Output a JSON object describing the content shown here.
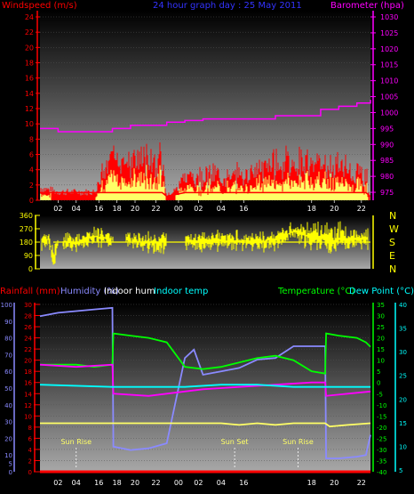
{
  "colors": {
    "windspeed": "#ff0000",
    "wind_gust_bars": "#ff0000",
    "wind_avg_bars": "#ffff66",
    "barometer": "#ff00ff",
    "direction": "#ffff00",
    "rainfall": "#ff0000",
    "humidity": "#8a8aff",
    "indoor_hum": "#ffff66",
    "indoor_temp": "#00ffff",
    "temperature": "#00ff00",
    "dew_point": "#ff00ff",
    "title": "#3333ff"
  },
  "top": {
    "title": "24 hour graph day : 25 May 2011",
    "left_label": "Windspeed (m/s)",
    "right_label": "Barometer (hpa)",
    "left_ticks": [
      "24",
      "22",
      "20",
      "18",
      "16",
      "14",
      "12",
      "10",
      "8",
      "6",
      "4",
      "2",
      "0"
    ],
    "right_ticks": [
      "1030",
      "1025",
      "1020",
      "1015",
      "1010",
      "1005",
      "1000",
      "995",
      "990",
      "985",
      "980",
      "975"
    ]
  },
  "middle": {
    "left_ticks": [
      "360",
      "270",
      "180",
      "90",
      "0"
    ],
    "right_ticks": [
      "N",
      "W",
      "S",
      "E",
      "N"
    ]
  },
  "bottom": {
    "rain_label": "Rainfall (mm)",
    "humidity_label": "Humidity (%)",
    "indoor_hum_label": "Indoor hum",
    "indoor_temp_label": "Indoor temp",
    "temperature_label": "Temperature (°C)",
    "dew_label": "Dew Point (°C)",
    "humidity_ticks": [
      "100",
      "90",
      "80",
      "70",
      "60",
      "50",
      "40",
      "30",
      "20",
      "10",
      "5",
      "0"
    ],
    "rain_ticks": [
      "30",
      "28",
      "26",
      "24",
      "22",
      "20",
      "18",
      "16",
      "14",
      "12",
      "10",
      "8",
      "6",
      "4",
      "2",
      "0"
    ],
    "temp_ticks": [
      "35",
      "30",
      "25",
      "20",
      "15",
      "10",
      "5",
      "0",
      "-5",
      "-10",
      "-15",
      "-20",
      "-25",
      "-30",
      "-35",
      "-40"
    ],
    "temp_right_ticks": [
      "40",
      "35",
      "30",
      "25",
      "20",
      "15",
      "10",
      "5"
    ],
    "events": [
      {
        "label": "Sun Rise",
        "hour": 4
      },
      {
        "label": "Sun Set",
        "hour": 21.5
      },
      {
        "label": "Sun Rise",
        "hour": 28.5
      }
    ]
  },
  "x_ticks": [
    "02",
    "04",
    "16",
    "18",
    "20",
    "22",
    "00",
    "02",
    "04",
    "16",
    "18",
    "20",
    "22"
  ],
  "chart_data": [
    {
      "type": "line",
      "title": "24 hour graph day : 25 May 2011",
      "series": [
        {
          "name": "Barometer (hpa)",
          "axis": "right",
          "ylim": [
            972.5,
            1030
          ],
          "x": [
            0,
            2,
            4,
            6,
            8,
            10,
            14,
            16,
            18,
            20,
            22,
            24,
            26,
            28,
            30,
            31,
            33,
            35,
            36.5
          ],
          "values": [
            995,
            994,
            994,
            994,
            995,
            996,
            997,
            997.5,
            998,
            998,
            998,
            998,
            999,
            999,
            999,
            1001,
            1002,
            1003,
            1004
          ]
        },
        {
          "name": "Windspeed (m/s)",
          "axis": "left",
          "ylim": [
            0,
            24
          ],
          "x": [
            0,
            2,
            3.5,
            6,
            8,
            10,
            13.5,
            14,
            16,
            18,
            20,
            22,
            24,
            26,
            28,
            30,
            32,
            34,
            36,
            36.5
          ],
          "values": [
            1.5,
            1,
            1,
            1,
            4,
            4,
            4,
            0.5,
            2,
            2,
            2,
            2,
            2.5,
            3.5,
            3.5,
            3.5,
            3,
            3,
            2,
            0.5
          ]
        }
      ],
      "xlim": [
        0,
        36.5
      ]
    },
    {
      "type": "scatter",
      "ylabel": "Wind direction",
      "ylim": [
        0,
        360
      ],
      "x": [
        0,
        1,
        1.5,
        2,
        4,
        6,
        8,
        10,
        12,
        14,
        16,
        18,
        20,
        22,
        24,
        26,
        28,
        30,
        32,
        34,
        36
      ],
      "values": [
        180,
        200,
        60,
        180,
        180,
        220,
        200,
        190,
        180,
        180,
        180,
        180,
        190,
        190,
        180,
        200,
        250,
        220,
        190,
        200,
        200
      ]
    },
    {
      "type": "line",
      "xlim": [
        0,
        36.5
      ],
      "series": [
        {
          "name": "Humidity (%)",
          "axis": "humidity",
          "ylim": [
            0,
            100
          ],
          "x": [
            0,
            2,
            4,
            6,
            8,
            8.1,
            10,
            12,
            14,
            16,
            17,
            18,
            20,
            22,
            24,
            26,
            28,
            30,
            31.5,
            31.6,
            33,
            35,
            36,
            36.5
          ],
          "values": [
            93,
            95,
            96,
            97,
            98,
            15,
            13,
            14,
            17,
            68,
            73,
            58,
            60,
            62,
            67,
            68,
            75,
            75,
            75,
            8,
            8,
            9,
            10,
            22
          ]
        },
        {
          "name": "Temperature (°C)",
          "axis": "temp",
          "ylim": [
            -40,
            35
          ],
          "x": [
            0,
            2,
            4,
            6,
            8,
            8.1,
            10,
            12,
            14,
            16,
            18,
            20,
            22,
            24,
            26,
            28,
            30,
            31.5,
            31.6,
            33,
            35,
            36,
            36.5
          ],
          "values": [
            8,
            8,
            8,
            7,
            8,
            22,
            21,
            20,
            18,
            7,
            6,
            7,
            9,
            11,
            12,
            10,
            5,
            4,
            22,
            21,
            20,
            18,
            16
          ]
        },
        {
          "name": "Dew Point (°C)",
          "axis": "temp",
          "ylim": [
            -40,
            35
          ],
          "x": [
            0,
            4,
            8,
            8.1,
            12,
            16,
            18,
            22,
            26,
            30,
            31.5,
            31.6,
            34,
            36.5
          ],
          "values": [
            8,
            7,
            8,
            -5,
            -6,
            -4,
            -3,
            -2,
            -1,
            0,
            0,
            -6,
            -5,
            -4
          ]
        },
        {
          "name": "Indoor temp",
          "axis": "temp",
          "ylim": [
            -40,
            35
          ],
          "x": [
            0,
            8,
            12,
            16,
            20,
            24,
            28,
            31,
            32,
            36.5
          ],
          "values": [
            -1,
            -2,
            -2,
            -2,
            -1,
            -1,
            -2,
            -2,
            -2,
            -2
          ]
        },
        {
          "name": "Indoor hum",
          "axis": "humidity",
          "ylim": [
            0,
            100
          ],
          "x": [
            0,
            8,
            12,
            16,
            20,
            22,
            24,
            26,
            28,
            30,
            31.5,
            32,
            34,
            36.5
          ],
          "values": [
            29,
            29,
            29,
            29,
            29,
            28,
            29,
            28,
            29,
            29,
            29,
            27,
            28,
            29
          ]
        },
        {
          "name": "Rainfall (mm)",
          "axis": "rain",
          "ylim": [
            0,
            30
          ],
          "x": [
            0,
            36.5
          ],
          "values": [
            0,
            0
          ]
        }
      ]
    }
  ]
}
